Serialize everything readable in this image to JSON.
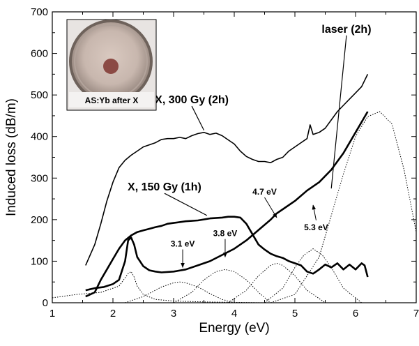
{
  "chart_data": {
    "type": "line",
    "xlabel": "Energy (eV)",
    "ylabel": "Induced loss (dB/m)",
    "xlim": [
      1,
      7
    ],
    "ylim": [
      0,
      700
    ],
    "x_ticks": [
      1,
      2,
      3,
      4,
      5,
      6,
      7
    ],
    "y_ticks": [
      0,
      100,
      200,
      300,
      400,
      500,
      600,
      700
    ],
    "x_tick_labels": [
      "1",
      "2",
      "3",
      "4",
      "5",
      "6",
      "7"
    ],
    "y_tick_labels": [
      "0",
      "100",
      "200",
      "300",
      "400",
      "500",
      "600",
      "700"
    ],
    "grid": false,
    "series": [
      {
        "name": "X, 300 Gy (2h)",
        "style": "solid",
        "width": "thin",
        "x": [
          1.55,
          1.7,
          1.8,
          1.9,
          2.0,
          2.1,
          2.2,
          2.3,
          2.4,
          2.5,
          2.6,
          2.7,
          2.8,
          2.9,
          3.0,
          3.1,
          3.2,
          3.3,
          3.4,
          3.5,
          3.6,
          3.7,
          3.8,
          3.9,
          4.0,
          4.1,
          4.2,
          4.3,
          4.4,
          4.5,
          4.6,
          4.7,
          4.8,
          4.9,
          5.0,
          5.1,
          5.2,
          5.25,
          5.3,
          5.4,
          5.5,
          5.6,
          5.7,
          5.8,
          5.9,
          6.0,
          6.1,
          6.2
        ],
        "y": [
          90,
          140,
          190,
          245,
          290,
          325,
          343,
          355,
          365,
          375,
          380,
          385,
          393,
          395,
          395,
          398,
          395,
          402,
          407,
          410,
          405,
          408,
          402,
          392,
          382,
          365,
          352,
          345,
          340,
          340,
          337,
          345,
          350,
          365,
          375,
          385,
          395,
          428,
          405,
          410,
          420,
          440,
          460,
          475,
          490,
          505,
          520,
          550
        ]
      },
      {
        "name": "X, 150 Gy (1h)",
        "style": "solid",
        "width": "thick",
        "x": [
          1.55,
          1.7,
          1.8,
          1.9,
          2.0,
          2.1,
          2.2,
          2.3,
          2.4,
          2.5,
          2.6,
          2.7,
          2.8,
          2.9,
          3.0,
          3.2,
          3.4,
          3.6,
          3.8,
          3.9,
          4.0,
          4.1,
          4.2,
          4.3,
          4.4,
          4.5,
          4.6,
          4.7,
          4.8,
          4.9,
          5.0,
          5.1,
          5.2,
          5.3,
          5.4,
          5.5,
          5.6,
          5.7,
          5.8,
          5.9,
          6.0,
          6.1,
          6.15,
          6.2
        ],
        "y": [
          15,
          25,
          55,
          80,
          105,
          130,
          150,
          162,
          170,
          174,
          178,
          182,
          185,
          190,
          192,
          196,
          198,
          203,
          205,
          207,
          207,
          205,
          190,
          165,
          140,
          128,
          118,
          112,
          108,
          100,
          95,
          90,
          75,
          70,
          80,
          92,
          85,
          95,
          80,
          92,
          80,
          95,
          90,
          62
        ]
      },
      {
        "name": "laser (2h)",
        "style": "solid",
        "width": "thick",
        "x": [
          1.55,
          1.7,
          1.85,
          2.0,
          2.1,
          2.2,
          2.25,
          2.3,
          2.35,
          2.4,
          2.5,
          2.6,
          2.7,
          2.8,
          3.0,
          3.2,
          3.4,
          3.6,
          3.8,
          4.0,
          4.2,
          4.4,
          4.6,
          4.7,
          4.8,
          5.0,
          5.2,
          5.4,
          5.6,
          5.8,
          6.0,
          6.2
        ],
        "y": [
          30,
          35,
          38,
          45,
          55,
          100,
          150,
          157,
          140,
          110,
          88,
          78,
          75,
          73,
          75,
          80,
          90,
          100,
          115,
          130,
          150,
          175,
          200,
          215,
          225,
          245,
          270,
          290,
          320,
          360,
          410,
          460
        ]
      },
      {
        "name": "",
        "style": "dotted",
        "x": [
          1.0,
          1.4,
          1.8,
          2.1,
          2.2,
          2.25,
          2.3,
          2.35,
          2.4,
          2.5,
          2.7,
          3.0,
          3.5,
          4.0,
          4.5,
          5.0,
          5.3,
          5.6,
          6.0
        ],
        "y": [
          12,
          20,
          25,
          40,
          60,
          70,
          75,
          62,
          40,
          20,
          8,
          4,
          2,
          1,
          0,
          0,
          0,
          0,
          0
        ]
      },
      {
        "name": "",
        "style": "dotted",
        "x": [
          2.2,
          2.5,
          2.8,
          3.0,
          3.1,
          3.2,
          3.4,
          3.6,
          3.8,
          4.0
        ],
        "y": [
          0,
          15,
          38,
          48,
          50,
          48,
          38,
          22,
          8,
          0
        ]
      },
      {
        "name": "",
        "style": "dotted",
        "x": [
          3.0,
          3.3,
          3.5,
          3.7,
          3.85,
          4.0,
          4.2,
          4.4,
          4.6
        ],
        "y": [
          0,
          25,
          55,
          75,
          80,
          75,
          55,
          25,
          0
        ]
      },
      {
        "name": "",
        "style": "dotted",
        "x": [
          3.9,
          4.2,
          4.4,
          4.6,
          4.7,
          4.8,
          5.0,
          5.2,
          5.5
        ],
        "y": [
          0,
          30,
          65,
          90,
          95,
          90,
          65,
          30,
          0
        ]
      },
      {
        "name": "",
        "style": "dotted",
        "x": [
          4.5,
          4.8,
          5.0,
          5.15,
          5.3,
          5.45,
          5.6,
          5.8,
          6.1
        ],
        "y": [
          0,
          35,
          85,
          115,
          130,
          115,
          85,
          35,
          0
        ]
      },
      {
        "name": "",
        "style": "dotted",
        "x": [
          4.6,
          5.0,
          5.4,
          5.8,
          6.0,
          6.2,
          6.4,
          6.6,
          6.8,
          7.0
        ],
        "y": [
          0,
          20,
          110,
          310,
          400,
          448,
          460,
          430,
          320,
          170
        ]
      }
    ],
    "annotations": [
      {
        "text": "laser (2h)",
        "size": "big",
        "x": 5.85,
        "y": 650,
        "arrow_to": [
          5.6,
          270
        ]
      },
      {
        "text": "X, 300 Gy (2h)",
        "size": "big",
        "x": 3.3,
        "y": 480,
        "arrow_to": [
          3.5,
          410
        ]
      },
      {
        "text": "X, 150 Gy (1h)",
        "size": "big",
        "x": 2.85,
        "y": 270,
        "arrow_to": [
          3.55,
          205
        ]
      },
      {
        "text": "4.7 eV",
        "size": "small",
        "x": 4.5,
        "y": 260,
        "arrow_to": [
          4.7,
          200
        ]
      },
      {
        "text": "5.3 eV",
        "size": "small",
        "x": 5.35,
        "y": 175,
        "arrow_to": [
          5.3,
          240
        ]
      },
      {
        "text": "3.8 eV",
        "size": "small",
        "x": 3.85,
        "y": 160,
        "arrow_to": [
          3.85,
          105
        ]
      },
      {
        "text": "3.1 eV",
        "size": "small",
        "x": 3.15,
        "y": 135,
        "arrow_to": [
          3.15,
          80
        ]
      }
    ],
    "inset": {
      "label": "AS:Yb after X"
    }
  }
}
